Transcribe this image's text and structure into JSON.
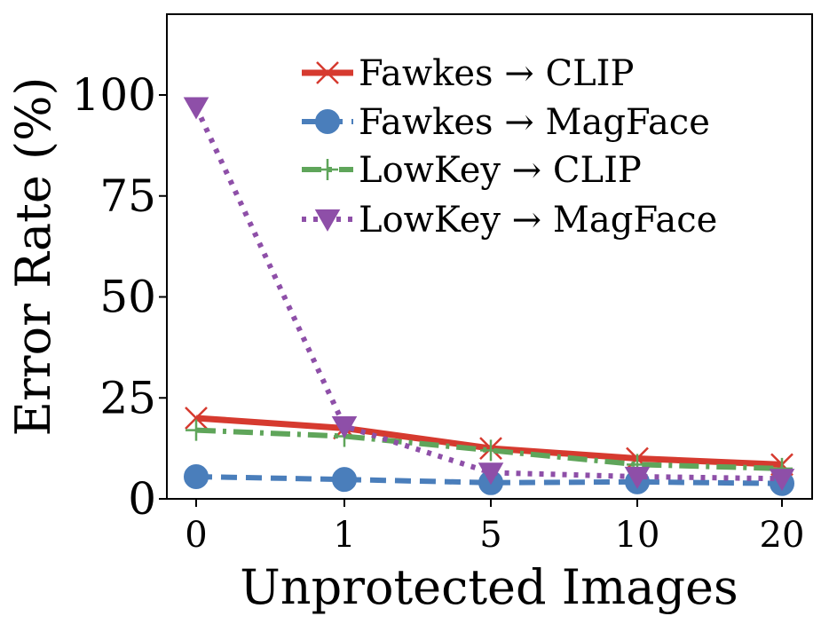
{
  "chart_data": {
    "type": "line",
    "categories": [
      "0",
      "1",
      "5",
      "10",
      "20"
    ],
    "xlabel": "Unprotected Images",
    "ylabel": "Error Rate (%)",
    "ylim": [
      0,
      120
    ],
    "yticks": [
      0,
      25,
      50,
      75,
      100
    ],
    "grid": false,
    "legend_position": "top-right",
    "series": [
      {
        "name": "Fawkes → CLIP",
        "values": [
          20,
          17.5,
          12.5,
          10,
          8.5
        ],
        "color": "#d63a2f",
        "marker": "x",
        "linestyle": "solid"
      },
      {
        "name": "Fawkes → MagFace",
        "values": [
          5.5,
          4.8,
          4.0,
          4.2,
          3.8
        ],
        "color": "#4a7ebb",
        "marker": "circle",
        "linestyle": "dashed"
      },
      {
        "name": "LowKey → CLIP",
        "values": [
          17,
          15.5,
          12,
          8.5,
          7.5
        ],
        "color": "#5fa55a",
        "marker": "plus",
        "linestyle": "dashdot"
      },
      {
        "name": "LowKey → MagFace",
        "values": [
          97,
          18,
          6.5,
          5.5,
          5
        ],
        "color": "#8e4fa8",
        "marker": "triangle-down",
        "linestyle": "dotted"
      }
    ]
  }
}
